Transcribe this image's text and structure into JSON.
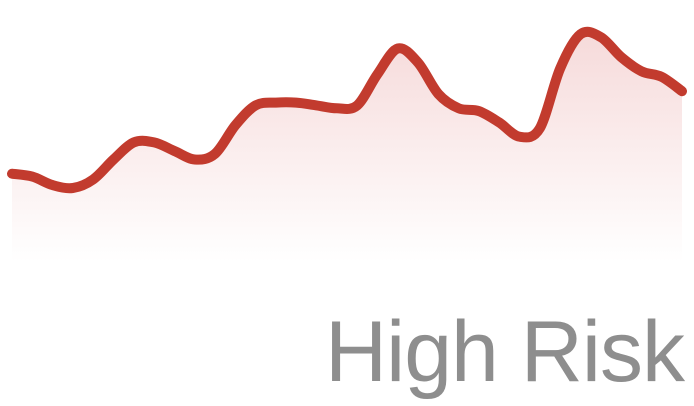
{
  "chart_data": {
    "type": "area",
    "x": [
      0,
      1,
      2,
      3,
      4,
      5,
      6,
      7,
      8,
      9,
      10,
      11,
      12,
      13,
      14,
      15,
      16,
      17,
      18,
      19,
      20,
      21,
      22,
      23,
      24,
      25,
      26,
      27,
      28,
      29,
      30,
      31,
      32,
      33,
      34,
      35,
      36,
      37,
      38,
      39,
      40,
      41,
      42
    ],
    "values": [
      3.1,
      3.0,
      2.7,
      2.6,
      2.9,
      3.6,
      4.2,
      4.2,
      3.9,
      3.6,
      3.8,
      4.8,
      5.5,
      5.6,
      5.6,
      5.5,
      5.4,
      5.5,
      6.6,
      7.5,
      7.0,
      5.9,
      5.4,
      5.3,
      4.9,
      4.4,
      4.7,
      6.8,
      8.0,
      7.9,
      7.2,
      6.7,
      6.5,
      6.0,
      5.6,
      5.5,
      5.5,
      5.5,
      5.5,
      5.5,
      5.5,
      5.5,
      5.5
    ],
    "ylim": [
      0,
      8.5
    ],
    "grid": false,
    "axes_visible": false
  },
  "label": {
    "text": "High Risk"
  },
  "colors": {
    "line": "#c23b2e",
    "fill_top": "#f6dada",
    "fill_bottom": "#ffffff",
    "label": "#8e8e8e"
  }
}
